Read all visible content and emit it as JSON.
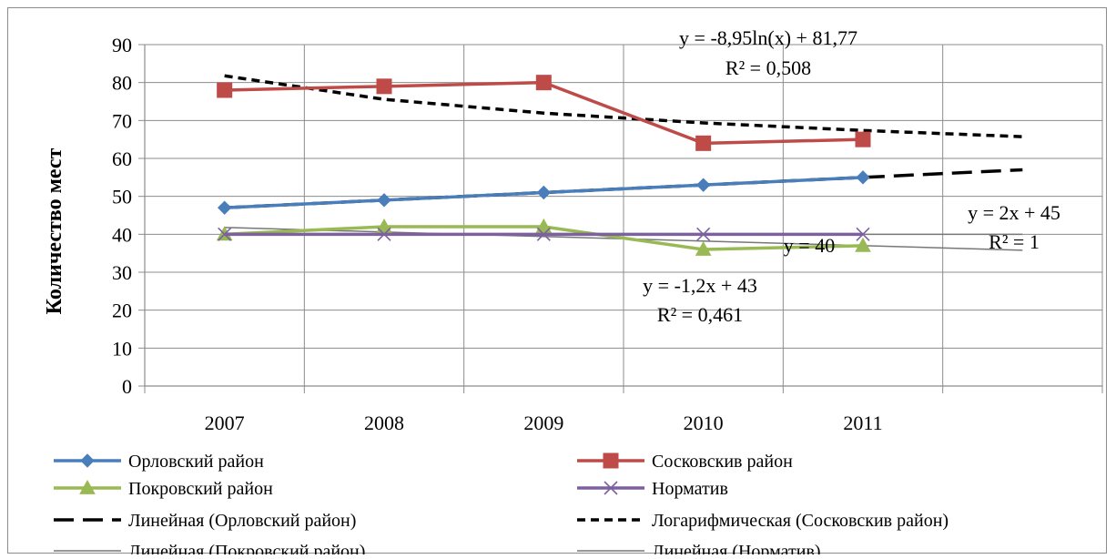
{
  "chart_data": {
    "type": "line",
    "title": "",
    "xlabel": "",
    "ylabel": "Количество мест",
    "ylim": [
      0,
      90
    ],
    "yticks": [
      0,
      10,
      20,
      30,
      40,
      50,
      60,
      70,
      80,
      90
    ],
    "x_tick_labels": [
      "2007",
      "2008",
      "2009",
      "2010",
      "2011",
      ""
    ],
    "grid": true,
    "legend_position": "bottom",
    "series": [
      {
        "name": "Орловский район",
        "color": "#4a7ebb",
        "marker": "diamond",
        "x": [
          2007,
          2008,
          2009,
          2010,
          2011
        ],
        "values": [
          47,
          49,
          51,
          53,
          55
        ]
      },
      {
        "name": "Сосковскив район",
        "color": "#be4b48",
        "marker": "square",
        "x": [
          2007,
          2008,
          2009,
          2010,
          2011
        ],
        "values": [
          78,
          79,
          80,
          64,
          65
        ]
      },
      {
        "name": "Покровский район",
        "color": "#98b954",
        "marker": "triangle",
        "x": [
          2007,
          2008,
          2009,
          2010,
          2011
        ],
        "values": [
          40,
          42,
          42,
          36,
          37
        ]
      },
      {
        "name": "Норматив",
        "color": "#7d60a0",
        "marker": "x",
        "x": [
          2007,
          2008,
          2009,
          2010,
          2011
        ],
        "values": [
          40,
          40,
          40,
          40,
          40
        ]
      }
    ],
    "trendlines": [
      {
        "name": "Линейная (Орловский район)",
        "color": "#000000",
        "style": "long-dash",
        "x": [
          2007,
          2012
        ],
        "values": [
          47,
          57
        ]
      },
      {
        "name": "Логарифмическая (Сосковскив район)",
        "color": "#000000",
        "style": "short-dash",
        "x": [
          2007,
          2008,
          2009,
          2010,
          2011,
          2012
        ],
        "values": [
          81.77,
          75.57,
          71.94,
          69.36,
          67.37,
          65.73
        ]
      },
      {
        "name": "Линейная (Покровский район)",
        "color": "#777777",
        "style": "solid-thin",
        "x": [
          2007,
          2012
        ],
        "values": [
          41.8,
          35.8
        ]
      },
      {
        "name": "Линейная (Норматив)",
        "color": "#777777",
        "style": "solid-thin",
        "x": [
          2007,
          2012
        ],
        "values": [
          40,
          40
        ]
      }
    ],
    "annotations": [
      {
        "line1": "y = -8,95ln(x) + 81,77",
        "line2": "R² = 0,508"
      },
      {
        "line1": "y = 2x + 45",
        "line2": "R² = 1"
      },
      {
        "line1": "y = 40",
        "line2": ""
      },
      {
        "line1": "y = -1,2x + 43",
        "line2": "R² = 0,461"
      }
    ]
  }
}
